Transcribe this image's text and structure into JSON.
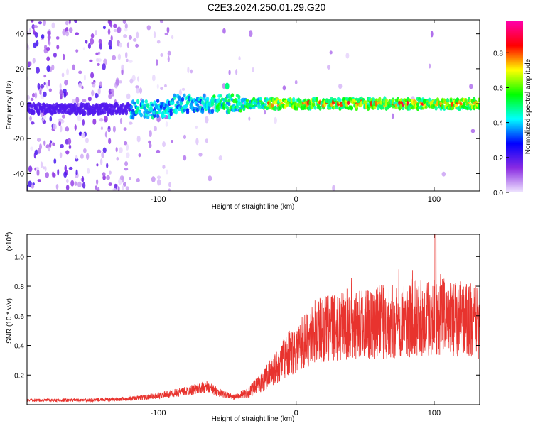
{
  "title": "C2E3.2024.250.01.29.G20",
  "chart_data": [
    {
      "type": "heatmap",
      "xlabel": "Height of straight line (km)",
      "ylabel": "Frequency (Hz)",
      "xlim": [
        -195,
        133
      ],
      "ylim": [
        -50,
        48
      ],
      "x_ticks": [
        "-100",
        "0",
        "100"
      ],
      "y_ticks": [
        "40",
        "20",
        "0",
        "-20",
        "-40"
      ],
      "colorbar": {
        "label": "Normalized spectral amplitude",
        "range": [
          0,
          0.98
        ],
        "ticks": [
          "0.0",
          "0.2",
          "0.4",
          "0.6",
          "0.8"
        ],
        "colors": [
          "#f0e6ff",
          "#8a2be2",
          "#0000ff",
          "#00ffff",
          "#00ff00",
          "#ffff00",
          "#ff0000",
          "#ff00aa"
        ]
      },
      "description_values": {
        "peak_frequency_hz": 0,
        "high_amplitude_start_km": -30
      }
    },
    {
      "type": "line",
      "xlabel": "Height of straight line (km)",
      "ylabel": "SNR (10 * v/v)",
      "multiplier_label": "(x10",
      "multiplier_exp": "4",
      "multiplier_close": ")",
      "xlim": [
        -195,
        133
      ],
      "ylim": [
        0,
        1.15
      ],
      "x_ticks": [
        "-100",
        "0",
        "100"
      ],
      "y_ticks": [
        "1.0",
        "0.8",
        "0.6",
        "0.4",
        "0.2"
      ],
      "color": "#e8332e",
      "trend": {
        "x": [
          -195,
          -150,
          -120,
          -100,
          -80,
          -65,
          -55,
          -45,
          -35,
          -25,
          -15,
          -5,
          5,
          15,
          25,
          40,
          60,
          80,
          100,
          115,
          133
        ],
        "y": [
          0.03,
          0.03,
          0.04,
          0.06,
          0.09,
          0.12,
          0.08,
          0.05,
          0.08,
          0.15,
          0.25,
          0.35,
          0.42,
          0.5,
          0.52,
          0.55,
          0.56,
          0.57,
          0.6,
          0.58,
          0.56
        ]
      }
    }
  ]
}
